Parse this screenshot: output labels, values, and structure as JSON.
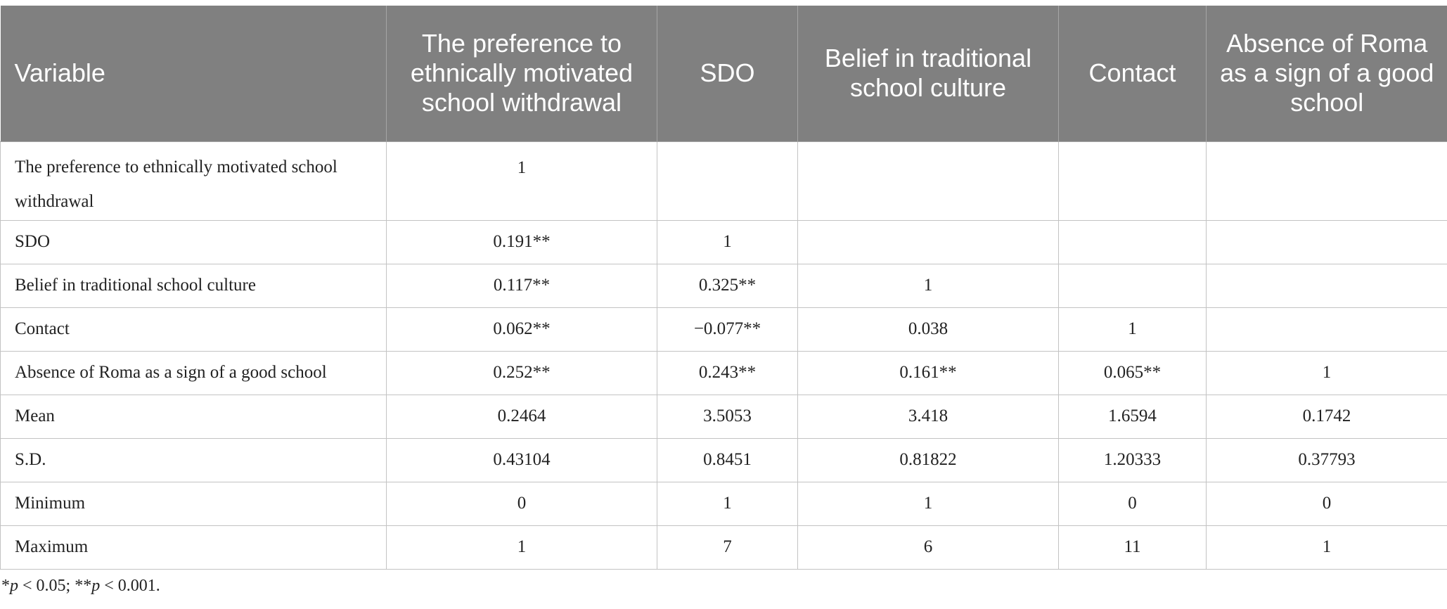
{
  "table": {
    "headers": [
      "Variable",
      "The preference to ethnically motivated school withdrawal",
      "SDO",
      "Belief in traditional school culture",
      "Contact",
      "Absence of Roma as a sign of a good school"
    ],
    "rows": [
      {
        "label": "The preference to ethnically motivated school withdrawal",
        "cells": [
          "1",
          "",
          "",
          "",
          ""
        ]
      },
      {
        "label": "SDO",
        "cells": [
          "0.191**",
          "1",
          "",
          "",
          ""
        ]
      },
      {
        "label": "Belief in traditional school culture",
        "cells": [
          "0.117**",
          "0.325**",
          "1",
          "",
          ""
        ]
      },
      {
        "label": "Contact",
        "cells": [
          "0.062**",
          "−0.077**",
          "0.038",
          "1",
          ""
        ]
      },
      {
        "label": "Absence of Roma as a sign of a good school",
        "cells": [
          "0.252**",
          "0.243**",
          "0.161**",
          "0.065**",
          "1"
        ]
      },
      {
        "label": "Mean",
        "cells": [
          "0.2464",
          "3.5053",
          "3.418",
          "1.6594",
          "0.1742"
        ]
      },
      {
        "label": "S.D.",
        "cells": [
          "0.43104",
          "0.8451",
          "0.81822",
          "1.20333",
          "0.37793"
        ]
      },
      {
        "label": "Minimum",
        "cells": [
          "0",
          "1",
          "1",
          "0",
          "0"
        ]
      },
      {
        "label": "Maximum",
        "cells": [
          "1",
          "7",
          "6",
          "11",
          "1"
        ]
      }
    ]
  },
  "footnote": {
    "part1_prefix": "*",
    "part1_var": "p",
    "part1_rest": " < 0.05; **",
    "part2_var": "p",
    "part2_rest": " < 0.001."
  }
}
